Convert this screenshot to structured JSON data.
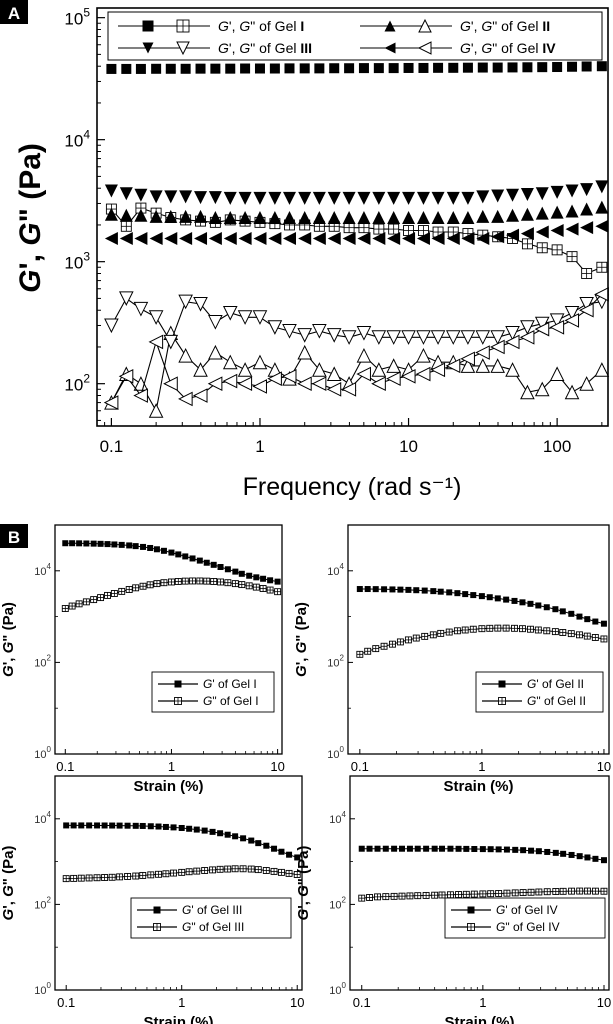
{
  "panel_labels": [
    "A",
    "B"
  ],
  "chart_data": [
    {
      "type": "scatter",
      "panel": "A",
      "xscale": "log",
      "yscale": "log",
      "xlabel": "Frequency (rad s⁻¹)",
      "ylabel": "G', G\" (Pa)",
      "xlim": [
        0.08,
        220
      ],
      "ylim": [
        45,
        120000
      ],
      "xticks": [
        {
          "v": 0.1,
          "label": "0.1"
        },
        {
          "v": 1,
          "label": "1"
        },
        {
          "v": 10,
          "label": "10"
        },
        {
          "v": 100,
          "label": "100"
        }
      ],
      "yticks": [
        {
          "v": 100,
          "base": "10",
          "exp": "2"
        },
        {
          "v": 1000,
          "base": "10",
          "exp": "3"
        },
        {
          "v": 10000,
          "base": "10",
          "exp": "4"
        },
        {
          "v": 100000,
          "base": "10",
          "exp": "5"
        }
      ],
      "legend_position": "top",
      "legend": [
        {
          "text": "G', G\" of Gel I",
          "mark_filled": "square",
          "mark_open": "square-plus"
        },
        {
          "text": "G', G\" of Gel II",
          "mark_filled": "triangle-up",
          "mark_open": "triangle-up-open"
        },
        {
          "text": "G', G\" of Gel III",
          "mark_filled": "triangle-down",
          "mark_open": "triangle-down-open"
        },
        {
          "text": "G', G\" of Gel IV",
          "mark_filled": "triangle-left",
          "mark_open": "triangle-left-open"
        }
      ],
      "x": [
        0.1,
        0.126,
        0.158,
        0.2,
        0.251,
        0.316,
        0.398,
        0.501,
        0.631,
        0.794,
        1,
        1.26,
        1.58,
        2,
        2.51,
        3.16,
        3.98,
        5.01,
        6.31,
        7.94,
        10,
        12.6,
        15.8,
        20,
        25.1,
        31.6,
        39.8,
        50.1,
        63.1,
        79.4,
        100,
        126,
        158,
        200
      ],
      "series": [
        {
          "name": "G' of Gel I",
          "marker": "square",
          "values": [
            38000,
            38000,
            38000,
            38100,
            38100,
            38100,
            38200,
            38200,
            38200,
            38300,
            38300,
            38300,
            38400,
            38400,
            38400,
            38500,
            38500,
            38600,
            38600,
            38600,
            38700,
            38700,
            38800,
            38800,
            38900,
            39000,
            39000,
            39100,
            39200,
            39300,
            39400,
            39600,
            39800,
            40000
          ]
        },
        {
          "name": "G\" of Gel I",
          "marker": "square-plus",
          "values": [
            2700,
            1950,
            2750,
            2500,
            2300,
            2200,
            2150,
            2100,
            2200,
            2150,
            2100,
            2050,
            2000,
            2000,
            1950,
            1950,
            1900,
            1900,
            1850,
            1850,
            1800,
            1800,
            1750,
            1750,
            1700,
            1650,
            1600,
            1550,
            1400,
            1300,
            1250,
            1100,
            800,
            900
          ]
        },
        {
          "name": "G' of Gel II",
          "marker": "triangle-up",
          "values": [
            2450,
            2400,
            2400,
            2350,
            2350,
            2350,
            2350,
            2300,
            2300,
            2300,
            2300,
            2300,
            2300,
            2300,
            2300,
            2300,
            2300,
            2300,
            2300,
            2300,
            2300,
            2300,
            2300,
            2300,
            2300,
            2350,
            2350,
            2400,
            2450,
            2500,
            2550,
            2600,
            2700,
            2800
          ]
        },
        {
          "name": "G\" of Gel II",
          "marker": "triangle-up-open",
          "values": [
            70,
            120,
            100,
            60,
            260,
            170,
            130,
            180,
            150,
            130,
            150,
            130,
            110,
            180,
            130,
            120,
            100,
            170,
            130,
            140,
            130,
            170,
            150,
            150,
            140,
            140,
            140,
            130,
            85,
            90,
            120,
            85,
            100,
            130
          ]
        },
        {
          "name": "G' of Gel III",
          "marker": "triangle-down",
          "values": [
            3800,
            3600,
            3500,
            3400,
            3400,
            3400,
            3350,
            3350,
            3300,
            3300,
            3300,
            3300,
            3300,
            3300,
            3300,
            3300,
            3300,
            3300,
            3300,
            3300,
            3300,
            3300,
            3300,
            3300,
            3300,
            3400,
            3450,
            3500,
            3550,
            3600,
            3700,
            3800,
            3900,
            4100
          ]
        },
        {
          "name": "G\" of Gel III",
          "marker": "triangle-down-open",
          "values": [
            300,
            500,
            410,
            350,
            220,
            470,
            450,
            320,
            380,
            350,
            350,
            290,
            270,
            250,
            270,
            250,
            240,
            260,
            240,
            240,
            240,
            240,
            240,
            240,
            240,
            240,
            240,
            260,
            290,
            310,
            330,
            380,
            450,
            470
          ]
        },
        {
          "name": "G' of Gel IV",
          "marker": "triangle-left",
          "values": [
            1550,
            1550,
            1550,
            1550,
            1550,
            1550,
            1550,
            1550,
            1550,
            1550,
            1550,
            1550,
            1550,
            1550,
            1550,
            1550,
            1550,
            1550,
            1550,
            1550,
            1550,
            1550,
            1550,
            1550,
            1550,
            1550,
            1600,
            1650,
            1700,
            1750,
            1800,
            1850,
            1900,
            1950
          ]
        },
        {
          "name": "G\" of Gel IV",
          "marker": "triangle-left-open",
          "values": [
            70,
            115,
            80,
            220,
            100,
            75,
            80,
            100,
            105,
            100,
            95,
            110,
            115,
            100,
            100,
            90,
            90,
            120,
            100,
            110,
            115,
            120,
            130,
            140,
            160,
            180,
            200,
            220,
            240,
            280,
            290,
            330,
            400,
            540
          ]
        }
      ]
    },
    {
      "type": "scatter",
      "panel": "B",
      "subplot": "Gel I",
      "xscale": "log",
      "yscale": "log",
      "xlabel": "Strain (%)",
      "ylabel": "G', G\" (Pa)",
      "xlim": [
        0.08,
        11
      ],
      "ylim": [
        1,
        100000
      ],
      "x": [
        0.1,
        0.116,
        0.135,
        0.158,
        0.185,
        0.215,
        0.25,
        0.29,
        0.34,
        0.4,
        0.46,
        0.54,
        0.63,
        0.73,
        0.85,
        1,
        1.16,
        1.35,
        1.58,
        1.85,
        2.15,
        2.5,
        2.9,
        3.4,
        4,
        4.6,
        5.4,
        6.3,
        7.3,
        8.5,
        10
      ],
      "legend_position": "lower-right",
      "legend": [
        {
          "text": "G' of Gel I"
        },
        {
          "text": "G\" of Gel I"
        }
      ],
      "series": [
        {
          "name": "G' of Gel I",
          "marker": "square",
          "values": [
            40000,
            40000,
            39800,
            39500,
            39200,
            38800,
            38300,
            37600,
            36800,
            35800,
            34600,
            33200,
            31500,
            29500,
            27300,
            25000,
            22800,
            20600,
            18600,
            16700,
            15000,
            13500,
            12100,
            10800,
            9600,
            8600,
            7800,
            7200,
            6700,
            6200,
            5800
          ]
        },
        {
          "name": "G\" of Gel I",
          "marker": "square-plus",
          "values": [
            1500,
            1700,
            1900,
            2100,
            2350,
            2600,
            2900,
            3200,
            3550,
            3900,
            4250,
            4600,
            4950,
            5250,
            5500,
            5700,
            5850,
            5950,
            6000,
            6000,
            5950,
            5850,
            5700,
            5500,
            5250,
            5000,
            4700,
            4400,
            4100,
            3800,
            3500
          ]
        }
      ]
    },
    {
      "type": "scatter",
      "panel": "B",
      "subplot": "Gel II",
      "xscale": "log",
      "yscale": "log",
      "xlabel": "Strain (%)",
      "ylabel": "G', G\" (Pa)",
      "xlim": [
        0.08,
        11
      ],
      "ylim": [
        1,
        100000
      ],
      "x": [
        0.1,
        0.116,
        0.135,
        0.158,
        0.185,
        0.215,
        0.25,
        0.29,
        0.34,
        0.4,
        0.46,
        0.54,
        0.63,
        0.73,
        0.85,
        1,
        1.16,
        1.35,
        1.58,
        1.85,
        2.15,
        2.5,
        2.9,
        3.4,
        4,
        4.6,
        5.4,
        6.3,
        7.3,
        8.5,
        10
      ],
      "legend_position": "lower-right",
      "legend": [
        {
          "text": "G' of Gel II"
        },
        {
          "text": "G\" of Gel II"
        }
      ],
      "series": [
        {
          "name": "G' of Gel II",
          "marker": "square",
          "values": [
            4000,
            4000,
            3980,
            3950,
            3920,
            3880,
            3830,
            3770,
            3700,
            3600,
            3500,
            3380,
            3250,
            3100,
            2950,
            2800,
            2650,
            2500,
            2350,
            2200,
            2050,
            1900,
            1750,
            1600,
            1450,
            1300,
            1150,
            1000,
            880,
            780,
            700
          ]
        },
        {
          "name": "G\" of Gel II",
          "marker": "square-plus",
          "values": [
            150,
            175,
            200,
            225,
            250,
            280,
            310,
            340,
            370,
            400,
            430,
            460,
            490,
            510,
            530,
            545,
            555,
            560,
            560,
            555,
            545,
            530,
            510,
            490,
            470,
            450,
            425,
            400,
            375,
            350,
            325
          ]
        }
      ]
    },
    {
      "type": "scatter",
      "panel": "B",
      "subplot": "Gel III",
      "xscale": "log",
      "yscale": "log",
      "xlabel": "Strain (%)",
      "ylabel": "G', G\" (Pa)",
      "xlim": [
        0.08,
        11
      ],
      "ylim": [
        1,
        100000
      ],
      "x": [
        0.1,
        0.116,
        0.135,
        0.158,
        0.185,
        0.215,
        0.25,
        0.29,
        0.34,
        0.4,
        0.46,
        0.54,
        0.63,
        0.73,
        0.85,
        1,
        1.16,
        1.35,
        1.58,
        1.85,
        2.15,
        2.5,
        2.9,
        3.4,
        4,
        4.6,
        5.4,
        6.3,
        7.3,
        8.5,
        10
      ],
      "legend_position": "lower-right",
      "legend": [
        {
          "text": "G' of Gel III"
        },
        {
          "text": "G\" of Gel III"
        }
      ],
      "series": [
        {
          "name": "G' of Gel III",
          "marker": "square",
          "values": [
            7000,
            7000,
            7000,
            7000,
            6990,
            6980,
            6960,
            6940,
            6900,
            6850,
            6800,
            6700,
            6600,
            6450,
            6300,
            6100,
            5850,
            5600,
            5300,
            4950,
            4600,
            4250,
            3900,
            3500,
            3100,
            2700,
            2350,
            2000,
            1700,
            1450,
            1250
          ]
        },
        {
          "name": "G\" of Gel III",
          "marker": "square-plus",
          "values": [
            400,
            405,
            410,
            415,
            420,
            425,
            430,
            440,
            450,
            460,
            475,
            490,
            505,
            520,
            540,
            560,
            580,
            600,
            620,
            640,
            660,
            670,
            680,
            680,
            670,
            650,
            620,
            590,
            560,
            530,
            500
          ]
        }
      ]
    },
    {
      "type": "scatter",
      "panel": "B",
      "subplot": "Gel IV",
      "xscale": "log",
      "yscale": "log",
      "xlabel": "Strain (%)",
      "ylabel": "G', G\" (Pa)",
      "xlim": [
        0.08,
        11
      ],
      "ylim": [
        1,
        100000
      ],
      "x": [
        0.1,
        0.116,
        0.135,
        0.158,
        0.185,
        0.215,
        0.25,
        0.29,
        0.34,
        0.4,
        0.46,
        0.54,
        0.63,
        0.73,
        0.85,
        1,
        1.16,
        1.35,
        1.58,
        1.85,
        2.15,
        2.5,
        2.9,
        3.4,
        4,
        4.6,
        5.4,
        6.3,
        7.3,
        8.5,
        10
      ],
      "legend_position": "lower-right",
      "legend": [
        {
          "text": "G' of Gel IV"
        },
        {
          "text": "G\" of Gel IV"
        }
      ],
      "series": [
        {
          "name": "G' of Gel IV",
          "marker": "square",
          "values": [
            2000,
            2000,
            2000,
            2000,
            2000,
            2000,
            2000,
            2000,
            2000,
            2000,
            2000,
            2000,
            1990,
            1980,
            1970,
            1960,
            1950,
            1930,
            1910,
            1880,
            1850,
            1800,
            1750,
            1680,
            1600,
            1520,
            1430,
            1340,
            1250,
            1160,
            1080
          ]
        },
        {
          "name": "G\" of Gel IV",
          "marker": "square-plus",
          "values": [
            140,
            145,
            150,
            152,
            154,
            156,
            158,
            160,
            162,
            164,
            166,
            168,
            170,
            172,
            174,
            176,
            178,
            180,
            183,
            186,
            189,
            192,
            195,
            198,
            200,
            202,
            204,
            205,
            205,
            204,
            203
          ]
        }
      ]
    }
  ]
}
